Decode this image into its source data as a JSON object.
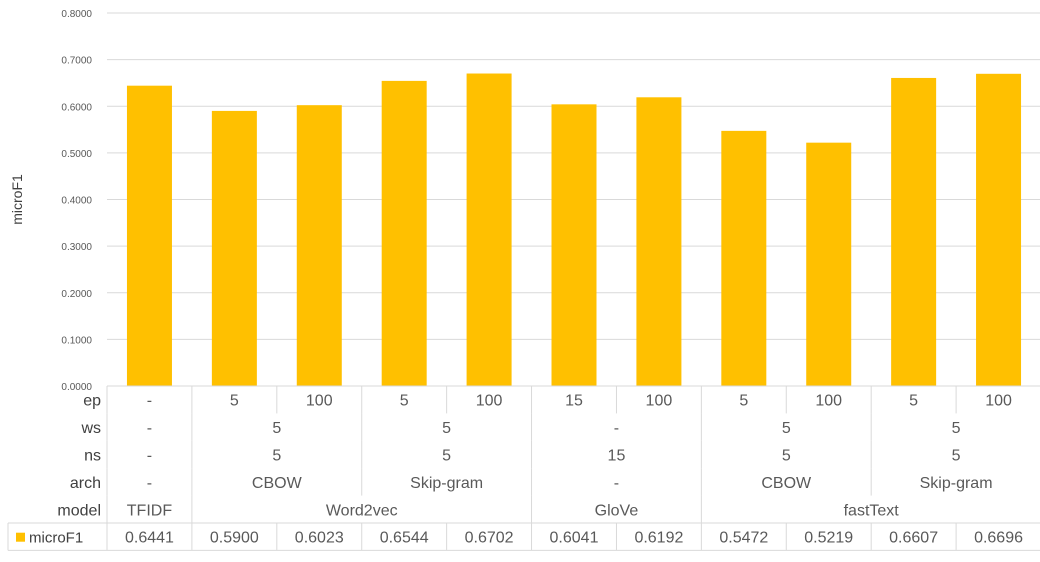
{
  "chart_data": {
    "type": "bar",
    "ylabel": "microF1",
    "ylim": [
      0,
      0.8
    ],
    "yticks": [
      "0.0000",
      "0.1000",
      "0.2000",
      "0.3000",
      "0.4000",
      "0.5000",
      "0.6000",
      "0.7000",
      "0.8000"
    ],
    "grid": true,
    "series": [
      {
        "name": "microF1",
        "color": "#FFC000",
        "values": [
          0.6441,
          0.59,
          0.6023,
          0.6544,
          0.6702,
          0.6041,
          0.6192,
          0.5472,
          0.5219,
          0.6607,
          0.6696
        ],
        "value_labels": [
          "0.6441",
          "0.5900",
          "0.6023",
          "0.6544",
          "0.6702",
          "0.6041",
          "0.6192",
          "0.5472",
          "0.5219",
          "0.6607",
          "0.6696"
        ]
      }
    ],
    "category_levels": [
      {
        "label": "ep",
        "groups": [
          {
            "text": "-",
            "span": 1
          },
          {
            "text": "5",
            "span": 1
          },
          {
            "text": "100",
            "span": 1
          },
          {
            "text": "5",
            "span": 1
          },
          {
            "text": "100",
            "span": 1
          },
          {
            "text": "15",
            "span": 1
          },
          {
            "text": "100",
            "span": 1
          },
          {
            "text": "5",
            "span": 1
          },
          {
            "text": "100",
            "span": 1
          },
          {
            "text": "5",
            "span": 1
          },
          {
            "text": "100",
            "span": 1
          }
        ]
      },
      {
        "label": "ws",
        "groups": [
          {
            "text": "-",
            "span": 1
          },
          {
            "text": "5",
            "span": 2
          },
          {
            "text": "5",
            "span": 2
          },
          {
            "text": "-",
            "span": 2
          },
          {
            "text": "5",
            "span": 2
          },
          {
            "text": "5",
            "span": 2
          }
        ]
      },
      {
        "label": "ns",
        "groups": [
          {
            "text": "-",
            "span": 1
          },
          {
            "text": "5",
            "span": 2
          },
          {
            "text": "5",
            "span": 2
          },
          {
            "text": "15",
            "span": 2
          },
          {
            "text": "5",
            "span": 2
          },
          {
            "text": "5",
            "span": 2
          }
        ]
      },
      {
        "label": "arch",
        "groups": [
          {
            "text": "-",
            "span": 1
          },
          {
            "text": "CBOW",
            "span": 2
          },
          {
            "text": "Skip-gram",
            "span": 2
          },
          {
            "text": "-",
            "span": 2
          },
          {
            "text": "CBOW",
            "span": 2
          },
          {
            "text": "Skip-gram",
            "span": 2
          }
        ]
      },
      {
        "label": "model",
        "groups": [
          {
            "text": "TFIDF",
            "span": 1
          },
          {
            "text": "Word2vec",
            "span": 4
          },
          {
            "text": "GloVe",
            "span": 2
          },
          {
            "text": "fastText",
            "span": 4
          }
        ]
      }
    ]
  }
}
